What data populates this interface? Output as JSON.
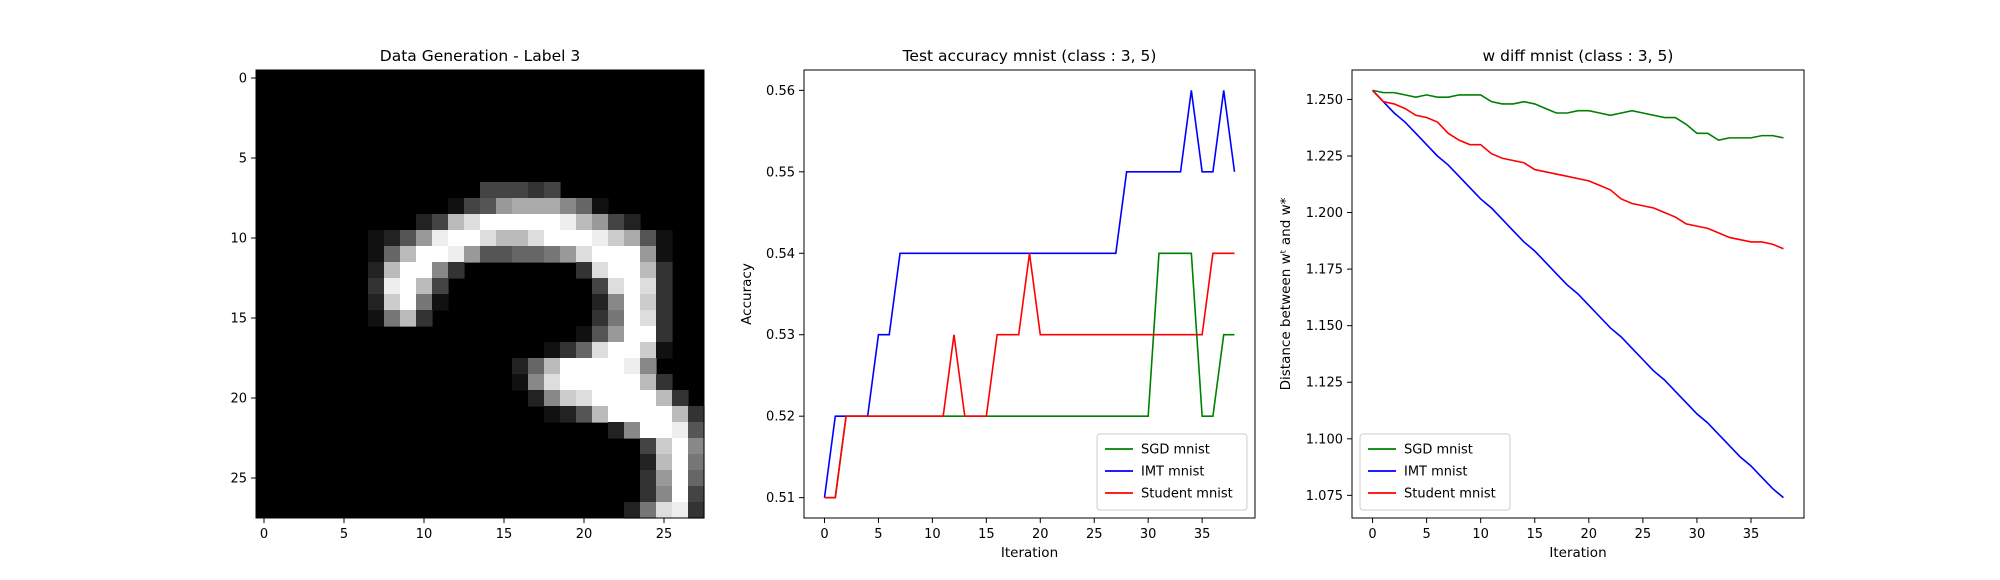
{
  "chart_data": [
    {
      "type": "heatmap",
      "title": "Data Generation - Label 3",
      "xlabel": "",
      "ylabel": "",
      "xlim": [
        -0.5,
        27.5
      ],
      "ylim": [
        27.5,
        -0.5
      ],
      "xticks": [
        0,
        5,
        10,
        15,
        20,
        25
      ],
      "yticks": [
        0,
        5,
        10,
        15,
        20,
        25
      ],
      "colormap": "gray",
      "rows": [
        "0000000000000000000000000000",
        "0000000000000000000000000000",
        "0000000000000000000000000000",
        "0000000000000000000000000000",
        "0000000000000000000000000000",
        "0000000000000000000000000000",
        "0000000000000000000000000000",
        "0000000000000044434000000000",
        "0000000000001459AAA861000000",
        "000000000024BDFFFFFEB9420000",
        "00000001259EFFDBBDFFFECA5100",
        "000000016BFFE9556679DFFF9100",
        "00000002BFF8300000003DFFB300",
        "00000003EFB40000000004DFD300",
        "00000002CF7100000000028FC300",
        "000000017B3000000000037FD300",
        "00000000000000000000159FF300",
        "000000000000000000136DFFC100",
        "000000000000000026BFFFFE8000",
        "000000000000000018DFFFFFB300",
        "0000000000000000028CDFFFFB30",
        "000000000000000000125BFFFFB3",
        "000000000000000000000028FFE5",
        "0000000000000000000000004CF8",
        "0000000000000000000000002BF7",
        "00000000000000000000000039F6",
        "00000000000000000000000038F4",
        "0000000000000000000000027DE3"
      ]
    },
    {
      "type": "line",
      "title": "Test accuracy mnist (class : 3, 5)",
      "xlabel": "Iteration",
      "ylabel": "Accuracy",
      "xlim": [
        -1.9,
        39.9
      ],
      "ylim": [
        0.5075,
        0.5625
      ],
      "xticks": [
        0,
        5,
        10,
        15,
        20,
        25,
        30,
        35
      ],
      "yticks": [
        0.51,
        0.52,
        0.53,
        0.54,
        0.55,
        0.56
      ],
      "ytick_labels": [
        "0.51",
        "0.52",
        "0.53",
        "0.54",
        "0.55",
        "0.56"
      ],
      "legend": "lower-right",
      "series": [
        {
          "name": "SGD mnist",
          "color": "#008000",
          "values": [
            0.51,
            0.51,
            0.52,
            0.52,
            0.52,
            0.52,
            0.52,
            0.52,
            0.52,
            0.52,
            0.52,
            0.52,
            0.52,
            0.52,
            0.52,
            0.52,
            0.52,
            0.52,
            0.52,
            0.52,
            0.52,
            0.52,
            0.52,
            0.52,
            0.52,
            0.52,
            0.52,
            0.52,
            0.52,
            0.52,
            0.52,
            0.54,
            0.54,
            0.54,
            0.54,
            0.52,
            0.52,
            0.53,
            0.53
          ]
        },
        {
          "name": "IMT mnist",
          "color": "#0000ff",
          "values": [
            0.51,
            0.52,
            0.52,
            0.52,
            0.52,
            0.53,
            0.53,
            0.54,
            0.54,
            0.54,
            0.54,
            0.54,
            0.54,
            0.54,
            0.54,
            0.54,
            0.54,
            0.54,
            0.54,
            0.54,
            0.54,
            0.54,
            0.54,
            0.54,
            0.54,
            0.54,
            0.54,
            0.54,
            0.55,
            0.55,
            0.55,
            0.55,
            0.55,
            0.55,
            0.56,
            0.55,
            0.55,
            0.56,
            0.55
          ]
        },
        {
          "name": "Student mnist",
          "color": "#ff0000",
          "values": [
            0.51,
            0.51,
            0.52,
            0.52,
            0.52,
            0.52,
            0.52,
            0.52,
            0.52,
            0.52,
            0.52,
            0.52,
            0.53,
            0.52,
            0.52,
            0.52,
            0.53,
            0.53,
            0.53,
            0.54,
            0.53,
            0.53,
            0.53,
            0.53,
            0.53,
            0.53,
            0.53,
            0.53,
            0.53,
            0.53,
            0.53,
            0.53,
            0.53,
            0.53,
            0.53,
            0.53,
            0.54,
            0.54,
            0.54
          ]
        }
      ]
    },
    {
      "type": "line",
      "title": "w diff mnist (class : 3, 5)",
      "xlabel": "Iteration",
      "ylabel": "Distance between wᵗ and w*",
      "xlim": [
        -1.9,
        39.9
      ],
      "ylim": [
        1.065,
        1.263
      ],
      "xticks": [
        0,
        5,
        10,
        15,
        20,
        25,
        30,
        35
      ],
      "yticks": [
        1.075,
        1.1,
        1.125,
        1.15,
        1.175,
        1.2,
        1.225,
        1.25
      ],
      "ytick_labels": [
        "1.075",
        "1.100",
        "1.125",
        "1.150",
        "1.175",
        "1.200",
        "1.225",
        "1.250"
      ],
      "legend": "lower-left",
      "series": [
        {
          "name": "SGD mnist",
          "color": "#008000",
          "values": [
            1.254,
            1.253,
            1.253,
            1.252,
            1.251,
            1.252,
            1.251,
            1.251,
            1.252,
            1.252,
            1.252,
            1.249,
            1.248,
            1.248,
            1.249,
            1.248,
            1.246,
            1.244,
            1.244,
            1.245,
            1.245,
            1.244,
            1.243,
            1.244,
            1.245,
            1.244,
            1.243,
            1.242,
            1.242,
            1.239,
            1.235,
            1.235,
            1.232,
            1.233,
            1.233,
            1.233,
            1.234,
            1.234,
            1.233
          ]
        },
        {
          "name": "IMT mnist",
          "color": "#0000ff",
          "values": [
            1.254,
            1.249,
            1.244,
            1.24,
            1.235,
            1.23,
            1.225,
            1.221,
            1.216,
            1.211,
            1.206,
            1.202,
            1.197,
            1.192,
            1.187,
            1.183,
            1.178,
            1.173,
            1.168,
            1.164,
            1.159,
            1.154,
            1.149,
            1.145,
            1.14,
            1.135,
            1.13,
            1.126,
            1.121,
            1.116,
            1.111,
            1.107,
            1.102,
            1.097,
            1.092,
            1.088,
            1.083,
            1.078,
            1.074
          ]
        },
        {
          "name": "Student mnist",
          "color": "#ff0000",
          "values": [
            1.254,
            1.249,
            1.248,
            1.246,
            1.243,
            1.242,
            1.24,
            1.235,
            1.232,
            1.23,
            1.23,
            1.226,
            1.224,
            1.223,
            1.222,
            1.219,
            1.218,
            1.217,
            1.216,
            1.215,
            1.214,
            1.212,
            1.21,
            1.206,
            1.204,
            1.203,
            1.202,
            1.2,
            1.198,
            1.195,
            1.194,
            1.193,
            1.191,
            1.189,
            1.188,
            1.187,
            1.187,
            1.186,
            1.184
          ]
        }
      ]
    }
  ]
}
